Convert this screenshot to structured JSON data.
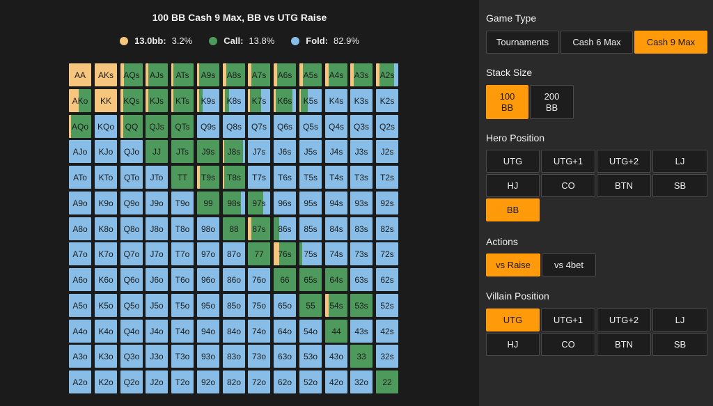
{
  "title": "100 BB Cash 9 Max, BB vs UTG Raise",
  "colors": {
    "raise": "#f6c57e",
    "call": "#4e9a5c",
    "fold": "#87bde6",
    "accent": "#ff9a0a"
  },
  "legend": [
    {
      "label": "13.0bb:",
      "value": "3.2%",
      "color": "#f6c57e"
    },
    {
      "label": "Call:",
      "value": "13.8%",
      "color": "#4e9a5c"
    },
    {
      "label": "Fold:",
      "value": "82.9%",
      "color": "#87bde6"
    }
  ],
  "grid": {
    "labels": [
      [
        "AA",
        "AKs",
        "AQs",
        "AJs",
        "ATs",
        "A9s",
        "A8s",
        "A7s",
        "A6s",
        "A5s",
        "A4s",
        "A3s",
        "A2s"
      ],
      [
        "AKo",
        "KK",
        "KQs",
        "KJs",
        "KTs",
        "K9s",
        "K8s",
        "K7s",
        "K6s",
        "K5s",
        "K4s",
        "K3s",
        "K2s"
      ],
      [
        "AQo",
        "KQo",
        "QQ",
        "QJs",
        "QTs",
        "Q9s",
        "Q8s",
        "Q7s",
        "Q6s",
        "Q5s",
        "Q4s",
        "Q3s",
        "Q2s"
      ],
      [
        "AJo",
        "KJo",
        "QJo",
        "JJ",
        "JTs",
        "J9s",
        "J8s",
        "J7s",
        "J6s",
        "J5s",
        "J4s",
        "J3s",
        "J2s"
      ],
      [
        "ATo",
        "KTo",
        "QTo",
        "JTo",
        "TT",
        "T9s",
        "T8s",
        "T7s",
        "T6s",
        "T5s",
        "T4s",
        "T3s",
        "T2s"
      ],
      [
        "A9o",
        "K9o",
        "Q9o",
        "J9o",
        "T9o",
        "99",
        "98s",
        "97s",
        "96s",
        "95s",
        "94s",
        "93s",
        "92s"
      ],
      [
        "A8o",
        "K8o",
        "Q8o",
        "J8o",
        "T8o",
        "98o",
        "88",
        "87s",
        "86s",
        "85s",
        "84s",
        "83s",
        "82s"
      ],
      [
        "A7o",
        "K7o",
        "Q7o",
        "J7o",
        "T7o",
        "97o",
        "87o",
        "77",
        "76s",
        "75s",
        "74s",
        "73s",
        "72s"
      ],
      [
        "A6o",
        "K6o",
        "Q6o",
        "J6o",
        "T6o",
        "96o",
        "86o",
        "76o",
        "66",
        "65s",
        "64s",
        "63s",
        "62s"
      ],
      [
        "A5o",
        "K5o",
        "Q5o",
        "J5o",
        "T5o",
        "95o",
        "85o",
        "75o",
        "65o",
        "55",
        "54s",
        "53s",
        "52s"
      ],
      [
        "A4o",
        "K4o",
        "Q4o",
        "J4o",
        "T4o",
        "94o",
        "84o",
        "74o",
        "64o",
        "54o",
        "44",
        "43s",
        "42s"
      ],
      [
        "A3o",
        "K3o",
        "Q3o",
        "J3o",
        "T3o",
        "93o",
        "83o",
        "73o",
        "63o",
        "53o",
        "43o",
        "33",
        "32s"
      ],
      [
        "A2o",
        "K2o",
        "Q2o",
        "J2o",
        "T2o",
        "92o",
        "82o",
        "72o",
        "62o",
        "52o",
        "42o",
        "32o",
        "22"
      ]
    ],
    "mix": [
      [
        [
          1,
          0,
          0
        ],
        [
          1,
          0,
          0
        ],
        [
          0.15,
          0.85,
          0
        ],
        [
          0.12,
          0.88,
          0
        ],
        [
          0.1,
          0.9,
          0
        ],
        [
          0.08,
          0.92,
          0
        ],
        [
          0.15,
          0.85,
          0
        ],
        [
          0.15,
          0.85,
          0
        ],
        [
          0.15,
          0.85,
          0
        ],
        [
          0.15,
          0.85,
          0
        ],
        [
          0.15,
          0.85,
          0
        ],
        [
          0.15,
          0.85,
          0
        ],
        [
          0.15,
          0.65,
          0.2
        ]
      ],
      [
        [
          0.45,
          0.55,
          0
        ],
        [
          1,
          0,
          0
        ],
        [
          0.12,
          0.88,
          0
        ],
        [
          0.12,
          0.88,
          0
        ],
        [
          0.1,
          0.9,
          0
        ],
        [
          0.1,
          0.15,
          0.75
        ],
        [
          0.1,
          0.2,
          0.7
        ],
        [
          0.1,
          0.5,
          0.4
        ],
        [
          0.08,
          0.75,
          0.17
        ],
        [
          0.05,
          0.3,
          0.65
        ],
        [
          0,
          0,
          1
        ],
        [
          0,
          0,
          1
        ],
        [
          0,
          0,
          1
        ]
      ],
      [
        [
          0.1,
          0.9,
          0
        ],
        [
          0,
          0,
          1
        ],
        [
          0.12,
          0.88,
          0
        ],
        [
          0,
          1,
          0
        ],
        [
          0,
          1,
          0
        ],
        [
          0,
          0,
          1
        ],
        [
          0,
          0,
          1
        ],
        [
          0,
          0,
          1
        ],
        [
          0,
          0,
          1
        ],
        [
          0,
          0,
          1
        ],
        [
          0,
          0,
          1
        ],
        [
          0,
          0,
          1
        ],
        [
          0,
          0,
          1
        ]
      ],
      [
        [
          0,
          0,
          1
        ],
        [
          0,
          0,
          1
        ],
        [
          0,
          0,
          1
        ],
        [
          0,
          1,
          0
        ],
        [
          0,
          1,
          0
        ],
        [
          0,
          1,
          0
        ],
        [
          0.05,
          0.85,
          0.1
        ],
        [
          0,
          0,
          1
        ],
        [
          0,
          0,
          1
        ],
        [
          0,
          0,
          1
        ],
        [
          0,
          0,
          1
        ],
        [
          0,
          0,
          1
        ],
        [
          0,
          0,
          1
        ]
      ],
      [
        [
          0,
          0,
          1
        ],
        [
          0,
          0,
          1
        ],
        [
          0,
          0,
          1
        ],
        [
          0,
          0,
          1
        ],
        [
          0,
          1,
          0
        ],
        [
          0.12,
          0.88,
          0
        ],
        [
          0.05,
          0.95,
          0
        ],
        [
          0,
          0,
          1
        ],
        [
          0,
          0,
          1
        ],
        [
          0,
          0,
          1
        ],
        [
          0,
          0,
          1
        ],
        [
          0,
          0,
          1
        ],
        [
          0,
          0,
          1
        ]
      ],
      [
        [
          0,
          0,
          1
        ],
        [
          0,
          0,
          1
        ],
        [
          0,
          0,
          1
        ],
        [
          0,
          0,
          1
        ],
        [
          0,
          0,
          1
        ],
        [
          0,
          1,
          0
        ],
        [
          0,
          0.8,
          0.2
        ],
        [
          0,
          0.7,
          0.3
        ],
        [
          0,
          0,
          1
        ],
        [
          0,
          0,
          1
        ],
        [
          0,
          0,
          1
        ],
        [
          0,
          0,
          1
        ],
        [
          0,
          0,
          1
        ]
      ],
      [
        [
          0,
          0,
          1
        ],
        [
          0,
          0,
          1
        ],
        [
          0,
          0,
          1
        ],
        [
          0,
          0,
          1
        ],
        [
          0,
          0,
          1
        ],
        [
          0,
          0,
          1
        ],
        [
          0,
          1,
          0
        ],
        [
          0.15,
          0.85,
          0
        ],
        [
          0,
          0.25,
          0.75
        ],
        [
          0,
          0,
          1
        ],
        [
          0,
          0,
          1
        ],
        [
          0,
          0,
          1
        ],
        [
          0,
          0,
          1
        ]
      ],
      [
        [
          0,
          0,
          1
        ],
        [
          0,
          0,
          1
        ],
        [
          0,
          0,
          1
        ],
        [
          0,
          0,
          1
        ],
        [
          0,
          0,
          1
        ],
        [
          0,
          0,
          1
        ],
        [
          0,
          0,
          1
        ],
        [
          0,
          1,
          0
        ],
        [
          0.25,
          0.75,
          0
        ],
        [
          0,
          0.12,
          0.88
        ],
        [
          0,
          0,
          1
        ],
        [
          0,
          0,
          1
        ],
        [
          0,
          0,
          1
        ]
      ],
      [
        [
          0,
          0,
          1
        ],
        [
          0,
          0,
          1
        ],
        [
          0,
          0,
          1
        ],
        [
          0,
          0,
          1
        ],
        [
          0,
          0,
          1
        ],
        [
          0,
          0,
          1
        ],
        [
          0,
          0,
          1
        ],
        [
          0,
          0,
          1
        ],
        [
          0,
          1,
          0
        ],
        [
          0,
          1,
          0
        ],
        [
          0,
          1,
          0
        ],
        [
          0,
          0,
          1
        ],
        [
          0,
          0,
          1
        ]
      ],
      [
        [
          0,
          0,
          1
        ],
        [
          0,
          0,
          1
        ],
        [
          0,
          0,
          1
        ],
        [
          0,
          0,
          1
        ],
        [
          0,
          0,
          1
        ],
        [
          0,
          0,
          1
        ],
        [
          0,
          0,
          1
        ],
        [
          0,
          0,
          1
        ],
        [
          0,
          0,
          1
        ],
        [
          0,
          1,
          0
        ],
        [
          0.15,
          0.85,
          0
        ],
        [
          0,
          1,
          0
        ],
        [
          0,
          0,
          1
        ]
      ],
      [
        [
          0,
          0,
          1
        ],
        [
          0,
          0,
          1
        ],
        [
          0,
          0,
          1
        ],
        [
          0,
          0,
          1
        ],
        [
          0,
          0,
          1
        ],
        [
          0,
          0,
          1
        ],
        [
          0,
          0,
          1
        ],
        [
          0,
          0,
          1
        ],
        [
          0,
          0,
          1
        ],
        [
          0,
          0,
          1
        ],
        [
          0,
          1,
          0
        ],
        [
          0,
          0,
          1
        ],
        [
          0,
          0,
          1
        ]
      ],
      [
        [
          0,
          0,
          1
        ],
        [
          0,
          0,
          1
        ],
        [
          0,
          0,
          1
        ],
        [
          0,
          0,
          1
        ],
        [
          0,
          0,
          1
        ],
        [
          0,
          0,
          1
        ],
        [
          0,
          0,
          1
        ],
        [
          0,
          0,
          1
        ],
        [
          0,
          0,
          1
        ],
        [
          0,
          0,
          1
        ],
        [
          0,
          0,
          1
        ],
        [
          0,
          1,
          0
        ],
        [
          0,
          0,
          1
        ]
      ],
      [
        [
          0,
          0,
          1
        ],
        [
          0,
          0,
          1
        ],
        [
          0,
          0,
          1
        ],
        [
          0,
          0,
          1
        ],
        [
          0,
          0,
          1
        ],
        [
          0,
          0,
          1
        ],
        [
          0,
          0,
          1
        ],
        [
          0,
          0,
          1
        ],
        [
          0,
          0,
          1
        ],
        [
          0,
          0,
          1
        ],
        [
          0,
          0,
          1
        ],
        [
          0,
          0,
          1
        ],
        [
          0,
          1,
          0
        ]
      ]
    ]
  },
  "sidebar": {
    "game_type": {
      "title": "Game Type",
      "options": [
        "Tournaments",
        "Cash 6 Max",
        "Cash 9 Max"
      ],
      "selected": 2
    },
    "stack_size": {
      "title": "Stack Size",
      "options": [
        "100\nBB",
        "200\nBB"
      ],
      "selected": 0
    },
    "hero_position": {
      "title": "Hero Position",
      "options": [
        "UTG",
        "UTG+1",
        "UTG+2",
        "LJ",
        "HJ",
        "CO",
        "BTN",
        "SB",
        "BB"
      ],
      "selected": 8
    },
    "actions": {
      "title": "Actions",
      "options": [
        "vs Raise",
        "vs 4bet"
      ],
      "selected": 0
    },
    "villain_position": {
      "title": "Villain Position",
      "options": [
        "UTG",
        "UTG+1",
        "UTG+2",
        "LJ",
        "HJ",
        "CO",
        "BTN",
        "SB"
      ],
      "selected": 0
    }
  }
}
